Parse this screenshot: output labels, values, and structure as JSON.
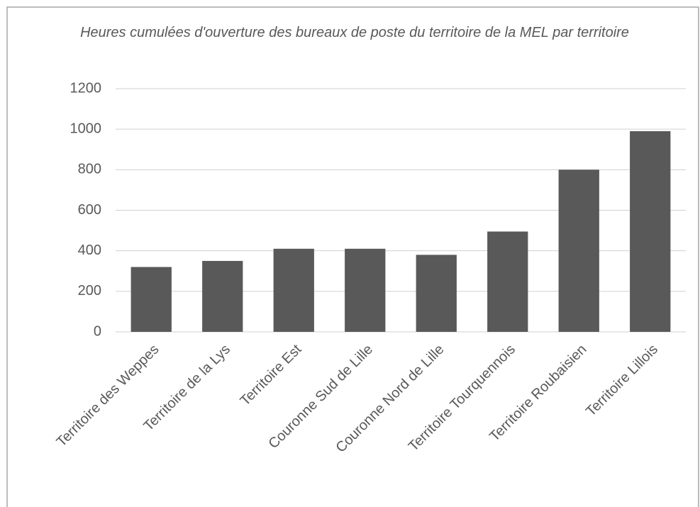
{
  "chart_data": {
    "type": "bar",
    "title": "Heures cumulées d'ouverture des bureaux de poste du territoire de la MEL par territoire",
    "categories": [
      "Territoire des Weppes",
      "Territoire de la Lys",
      "Territoire Est",
      "Couronne Sud de Lille",
      "Couronne Nord de Lille",
      "Territoire Tourquennois",
      "Territoire Roubaisien",
      "Territoire Lillois"
    ],
    "values": [
      320,
      350,
      410,
      410,
      380,
      495,
      800,
      990
    ],
    "color": "#595959",
    "ylim": [
      0,
      1200
    ],
    "yticks": [
      0,
      200,
      400,
      600,
      800,
      1000,
      1200
    ],
    "grid": true
  }
}
